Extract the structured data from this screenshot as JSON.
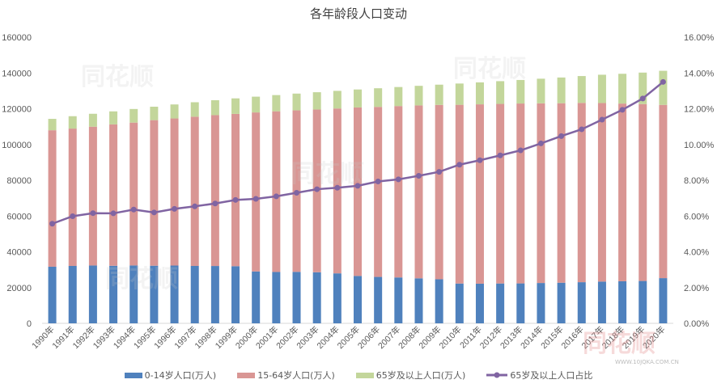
{
  "chart_data": {
    "type": "bar",
    "title": "各年龄段人口变动",
    "stacked": true,
    "categories": [
      "1990年",
      "1991年",
      "1992年",
      "1993年",
      "1994年",
      "1995年",
      "1996年",
      "1997年",
      "1998年",
      "1999年",
      "2000年",
      "2001年",
      "2002年",
      "2003年",
      "2004年",
      "2005年",
      "2006年",
      "2007年",
      "2008年",
      "2009年",
      "2010年",
      "2011年",
      "2012年",
      "2013年",
      "2014年",
      "2015年",
      "2016年",
      "2017年",
      "2018年",
      "2019年",
      "2020年"
    ],
    "series": [
      {
        "name": "0-14岁人口(万人)",
        "type": "bar",
        "axis": "left",
        "color": "#4f81bd",
        "values": [
          31659,
          32095,
          32339,
          32177,
          32360,
          32218,
          32311,
          32093,
          32064,
          31950,
          29012,
          28716,
          28774,
          28559,
          27947,
          26504,
          25961,
          25660,
          25166,
          24659,
          22259,
          22164,
          22287,
          22329,
          22558,
          22715,
          23008,
          23348,
          23523,
          23689,
          25277
        ]
      },
      {
        "name": "15-64岁人口(万人)",
        "type": "bar",
        "axis": "left",
        "color": "#d99694",
        "values": [
          76306,
          76791,
          77614,
          79051,
          79868,
          81393,
          82245,
          83448,
          84338,
          85157,
          88910,
          89849,
          90302,
          90976,
          92184,
          94197,
          95068,
          95833,
          96680,
          97484,
          99938,
          100283,
          100403,
          100582,
          100469,
          100361,
          100260,
          99829,
          99357,
          98910,
          96871
        ]
      },
      {
        "name": "65岁及以上人口(万人)",
        "type": "bar",
        "axis": "left",
        "color": "#c3d69b",
        "values": [
          6368,
          6938,
          7218,
          7289,
          7622,
          7510,
          7833,
          8085,
          8359,
          8679,
          8821,
          9062,
          9377,
          9692,
          9857,
          10055,
          10419,
          10636,
          10956,
          11307,
          11894,
          12288,
          12714,
          13161,
          13755,
          14386,
          15003,
          15831,
          16658,
          17603,
          19064
        ]
      },
      {
        "name": "65岁及以上人口占比",
        "type": "line",
        "axis": "right",
        "color": "#8064a2",
        "values": [
          5.57,
          5.99,
          6.16,
          6.15,
          6.36,
          6.2,
          6.4,
          6.54,
          6.7,
          6.9,
          6.96,
          7.1,
          7.3,
          7.5,
          7.58,
          7.69,
          7.93,
          8.05,
          8.25,
          8.47,
          8.87,
          9.12,
          9.39,
          9.67,
          10.06,
          10.47,
          10.85,
          11.39,
          11.94,
          12.57,
          13.5
        ]
      }
    ],
    "ylim": [
      0,
      160000
    ],
    "yticks": [
      "0",
      "20000",
      "40000",
      "60000",
      "80000",
      "100000",
      "120000",
      "140000",
      "160000"
    ],
    "y2lim": [
      0,
      16
    ],
    "y2ticks": [
      "0.00%",
      "2.00%",
      "4.00%",
      "6.00%",
      "8.00%",
      "10.00%",
      "12.00%",
      "14.00%",
      "16.00%"
    ],
    "grid": false,
    "legend": "bottom"
  },
  "watermark": "同花顺",
  "watermark_url": "WWW.10JQKA.COM.CN"
}
